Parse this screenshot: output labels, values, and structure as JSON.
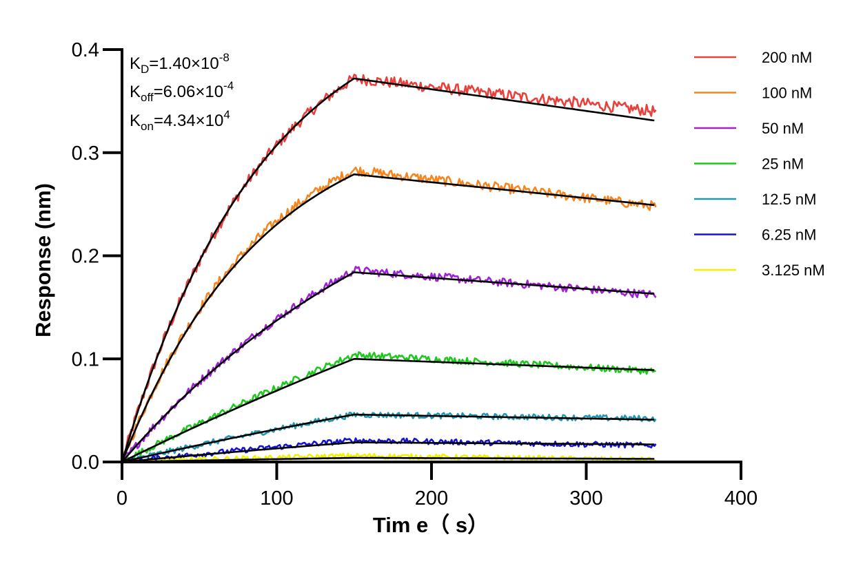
{
  "chart_data": {
    "type": "line",
    "xlabel": "Tim e（ s）",
    "ylabel": "Response (nm)",
    "xlim": [
      0,
      400
    ],
    "ylim": [
      0,
      0.4
    ],
    "x_ticks": [
      "0",
      "100",
      "200",
      "300",
      "400"
    ],
    "y_ticks": [
      "0.0",
      "0.1",
      "0.2",
      "0.3",
      "0.4"
    ],
    "grid": false,
    "legend_position": "right",
    "association_end": 150,
    "dissociation_end": 345,
    "annotations": {
      "kd": {
        "base": "K",
        "sub": "D",
        "val": "=1.40×10",
        "exp": "-8"
      },
      "koff": {
        "base": "K",
        "sub": "off",
        "val": "=6.06×10",
        "exp": "-4"
      },
      "kon": {
        "base": "K",
        "sub": "on",
        "val": "=4.34×10",
        "exp": "4"
      }
    },
    "fit_color": "#000000",
    "series": [
      {
        "name": "200 nM",
        "color": "#e8413c",
        "fit_peak": 0.372,
        "fit_end": 0.331,
        "data_peak": 0.372,
        "data_end": 0.34,
        "assoc_shape": "curved"
      },
      {
        "name": "100 nM",
        "color": "#f5861f",
        "fit_peak": 0.279,
        "fit_end": 0.249,
        "data_peak": 0.283,
        "data_end": 0.248,
        "assoc_shape": "curved"
      },
      {
        "name": "50 nM",
        "color": "#a020d8",
        "fit_peak": 0.184,
        "fit_end": 0.163,
        "data_peak": 0.186,
        "data_end": 0.162,
        "assoc_shape": "slight"
      },
      {
        "name": "25 nM",
        "color": "#1ec81e",
        "fit_peak": 0.1,
        "fit_end": 0.089,
        "data_peak": 0.104,
        "data_end": 0.088,
        "assoc_shape": "linear"
      },
      {
        "name": "12.5 nM",
        "color": "#2398b0",
        "fit_peak": 0.046,
        "fit_end": 0.041,
        "data_peak": 0.046,
        "data_end": 0.042,
        "assoc_shape": "linear"
      },
      {
        "name": "6.25 nM",
        "color": "#1414d2",
        "fit_peak": 0.019,
        "fit_end": 0.017,
        "data_peak": 0.021,
        "data_end": 0.016,
        "assoc_shape": "linear"
      },
      {
        "name": "3.125 nM",
        "color": "#f0f000",
        "fit_peak": 0.004,
        "fit_end": 0.003,
        "data_peak": 0.006,
        "data_end": 0.002,
        "assoc_shape": "linear"
      }
    ]
  }
}
